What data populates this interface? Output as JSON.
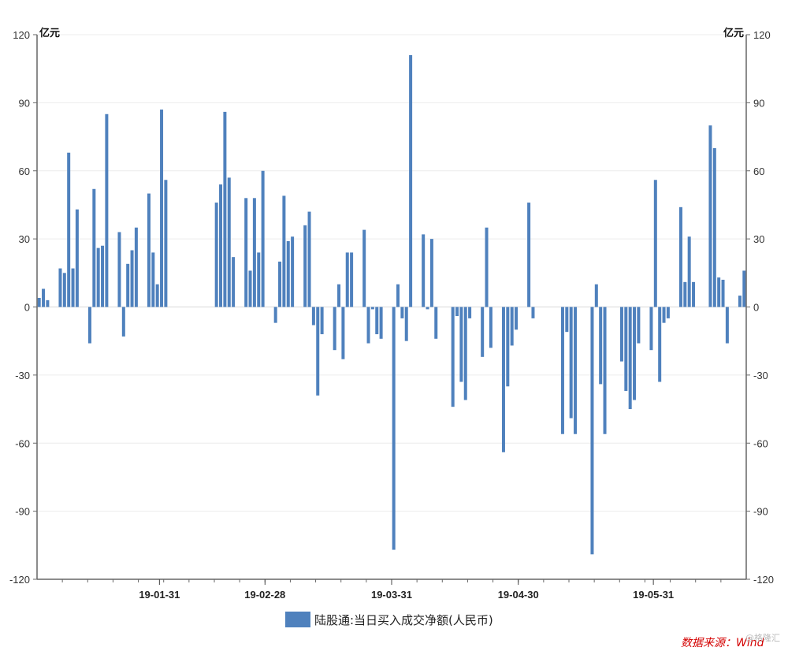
{
  "chart_data": {
    "type": "bar",
    "y_unit_left": "亿元",
    "y_unit_right": "亿元",
    "ylim": [
      -120,
      120
    ],
    "y_ticks": [
      120,
      90,
      60,
      30,
      0,
      -30,
      -60,
      -90,
      -120
    ],
    "y_tick_labels": [
      "120",
      "90",
      "60",
      "30",
      "0",
      "-30",
      "-60",
      "-90",
      "-120"
    ],
    "x_ticks": [
      "19-01-31",
      "19-02-28",
      "19-03-31",
      "19-04-30",
      "19-05-31"
    ],
    "x_tick_positions": [
      29,
      54,
      84,
      114,
      146
    ],
    "x_slots": 168,
    "grid": true,
    "legend_position": "bottom-center",
    "bar_color": "#4f81bd",
    "series": [
      {
        "name": "陆股通:当日买入成交净额(人民币)",
        "values": [
          4,
          8,
          3,
          null,
          null,
          17,
          15,
          68,
          17,
          43,
          null,
          null,
          -16,
          52,
          26,
          27,
          85,
          null,
          null,
          33,
          -13,
          19,
          25,
          35,
          null,
          null,
          50,
          24,
          10,
          87,
          56,
          null,
          null,
          null,
          null,
          null,
          null,
          null,
          null,
          null,
          null,
          null,
          46,
          54,
          86,
          57,
          22,
          null,
          null,
          48,
          16,
          48,
          24,
          60,
          null,
          null,
          -7,
          20,
          49,
          29,
          31,
          null,
          null,
          36,
          42,
          -8,
          -39,
          -12,
          null,
          null,
          -19,
          10,
          -23,
          24,
          24,
          null,
          null,
          34,
          -16,
          -1,
          -12,
          -14,
          null,
          null,
          -107,
          10,
          -5,
          -15,
          111,
          null,
          null,
          32,
          -1,
          30,
          -14,
          null,
          null,
          null,
          -44,
          -4,
          -33,
          -41,
          -5,
          null,
          null,
          -22,
          35,
          -18,
          null,
          null,
          -64,
          -35,
          -17,
          -10,
          null,
          null,
          46,
          -5,
          null,
          null,
          null,
          null,
          null,
          null,
          -56,
          -11,
          -49,
          -56,
          null,
          null,
          null,
          -109,
          10,
          -34,
          -56,
          null,
          null,
          null,
          -24,
          -37,
          -45,
          -41,
          -16,
          null,
          null,
          -19,
          56,
          -33,
          -7,
          -5,
          null,
          null,
          44,
          11,
          31,
          11,
          null,
          null,
          null,
          80,
          70,
          13,
          12,
          -16,
          null,
          null,
          5,
          16
        ]
      }
    ],
    "source_note": "数据来源：Wind",
    "watermark": "@格隆汇"
  }
}
